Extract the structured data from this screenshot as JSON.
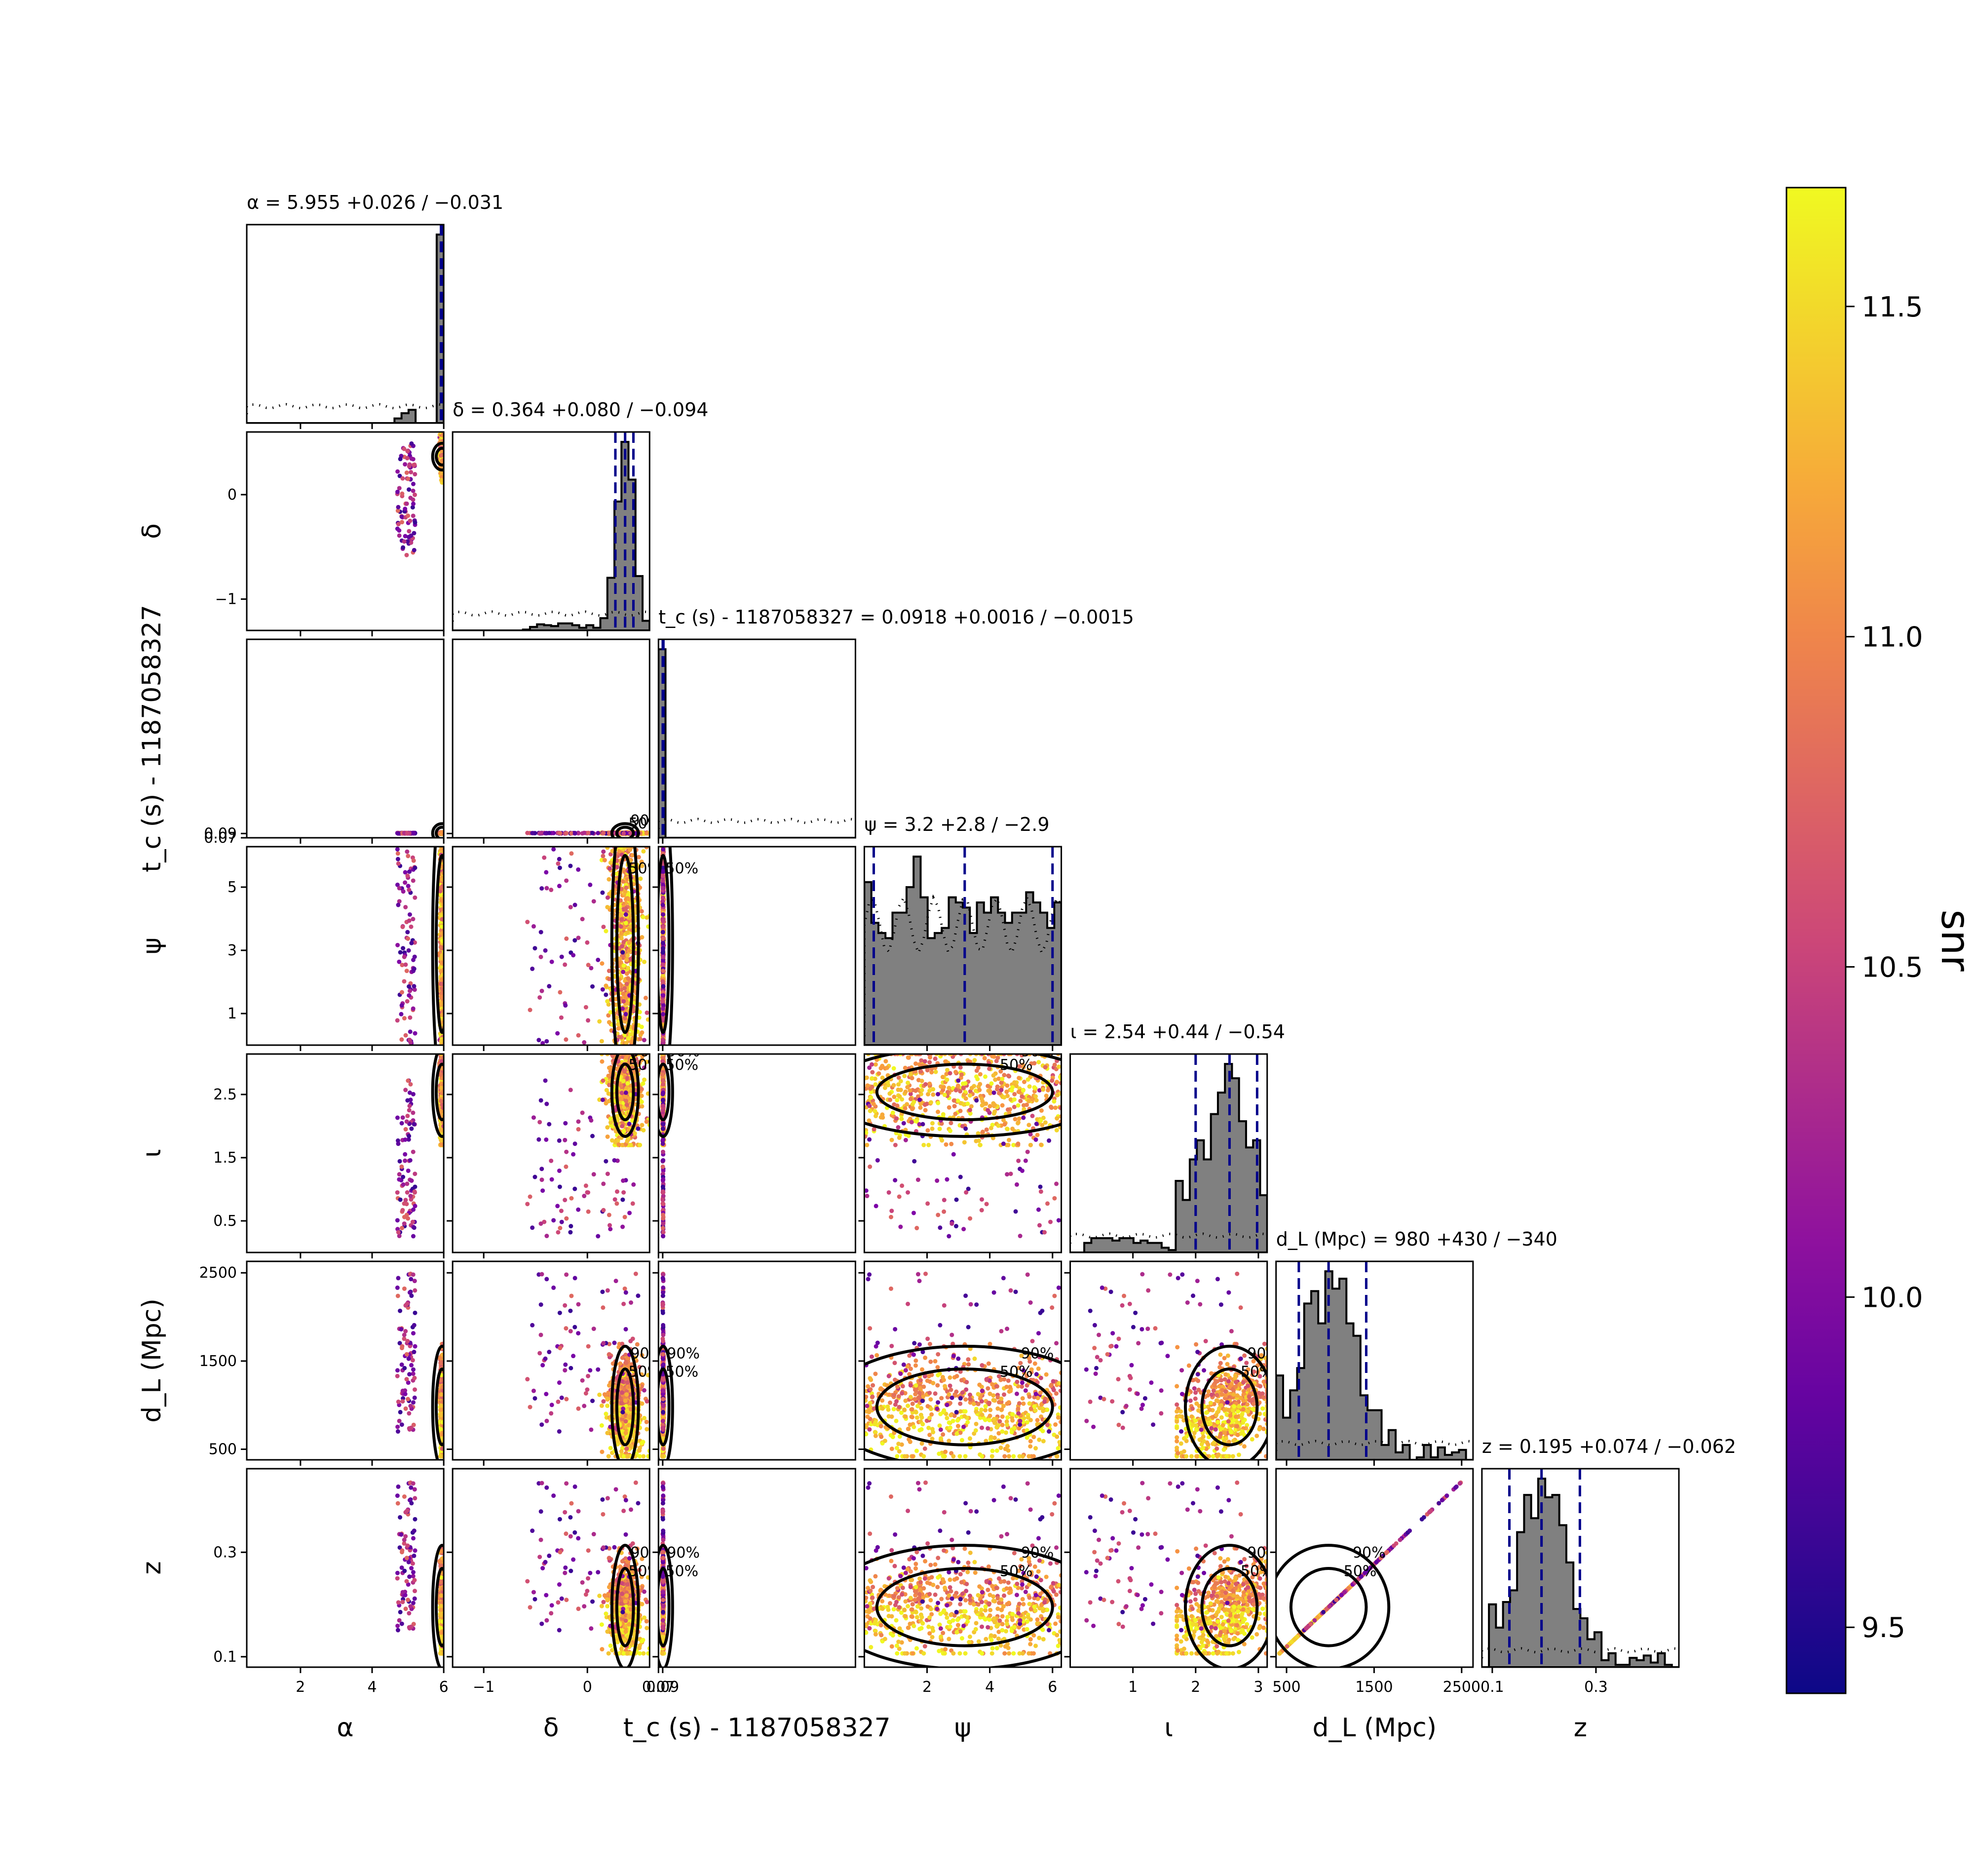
{
  "chart_data": {
    "type": "corner",
    "parameters": [
      {
        "key": "alpha",
        "label": "α",
        "title_name": "α",
        "median": "5.955",
        "plus": "+0.026",
        "minus": "−0.031",
        "range": [
          0.5,
          6.0
        ],
        "ticks": [
          2,
          4,
          6
        ],
        "tick_labels": [
          "2",
          "4",
          "6"
        ]
      },
      {
        "key": "delta",
        "label": "δ",
        "title_name": "δ",
        "median": "0.364",
        "plus": "+0.080",
        "minus": "−0.094",
        "range": [
          -1.3,
          0.6
        ],
        "ticks": [
          -1,
          0
        ],
        "tick_labels": [
          "−1",
          "0"
        ]
      },
      {
        "key": "tc",
        "label": "t_c (s) - 1187058327",
        "title_name": "t_c (s) - 1187058327",
        "median": "0.0918",
        "plus": "+0.0016",
        "minus": "−0.0015",
        "range": [
          0.07,
          1.0
        ],
        "ticks": [
          0.07,
          0.09
        ],
        "tick_labels": [
          "0.07",
          "0.09"
        ]
      },
      {
        "key": "psi",
        "label": "ψ",
        "title_name": "ψ",
        "median": "3.2",
        "plus": "+2.8",
        "minus": "−2.9",
        "range": [
          0.0,
          6.28
        ],
        "ticks": [
          1,
          3,
          5
        ],
        "tick_labels": [
          "1",
          "3",
          "5"
        ],
        "x_ticks": [
          2,
          4,
          6
        ],
        "x_tick_labels": [
          "2",
          "4",
          "6"
        ]
      },
      {
        "key": "iota",
        "label": "ι",
        "title_name": "ι",
        "median": "2.54",
        "plus": "+0.44",
        "minus": "−0.54",
        "range": [
          0.0,
          3.14
        ],
        "ticks": [
          0.5,
          1.5,
          2.5
        ],
        "tick_labels": [
          "0.5",
          "1.5",
          "2.5"
        ],
        "x_ticks": [
          1,
          2,
          3
        ],
        "x_tick_labels": [
          "1",
          "2",
          "3"
        ]
      },
      {
        "key": "dL",
        "label": "d_L (Mpc)",
        "title_name": "d_L (Mpc)",
        "median": "980",
        "plus": "+430",
        "minus": "−340",
        "range": [
          380,
          2630
        ],
        "ticks": [
          500,
          1500,
          2500
        ],
        "tick_labels": [
          "500",
          "1500",
          "2500"
        ]
      },
      {
        "key": "z",
        "label": "z",
        "title_name": "z",
        "median": "0.195",
        "plus": "+0.074",
        "minus": "−0.062",
        "range": [
          0.08,
          0.46
        ],
        "ticks": [
          0.1,
          0.3
        ],
        "tick_labels": [
          "0.1",
          "0.3"
        ]
      }
    ],
    "contour_labels": [
      "50%",
      "90%"
    ],
    "colorbar": {
      "label": "snr",
      "min": 9.4,
      "max": 11.68,
      "ticks": [
        9.5,
        10.0,
        10.5,
        11.0,
        11.5
      ],
      "tick_labels": [
        "9.5",
        "10.0",
        "10.5",
        "11.0",
        "11.5"
      ],
      "colormap": "plasma"
    },
    "histogram_fill": "#808080",
    "quantile_line_color": "#00008b"
  }
}
